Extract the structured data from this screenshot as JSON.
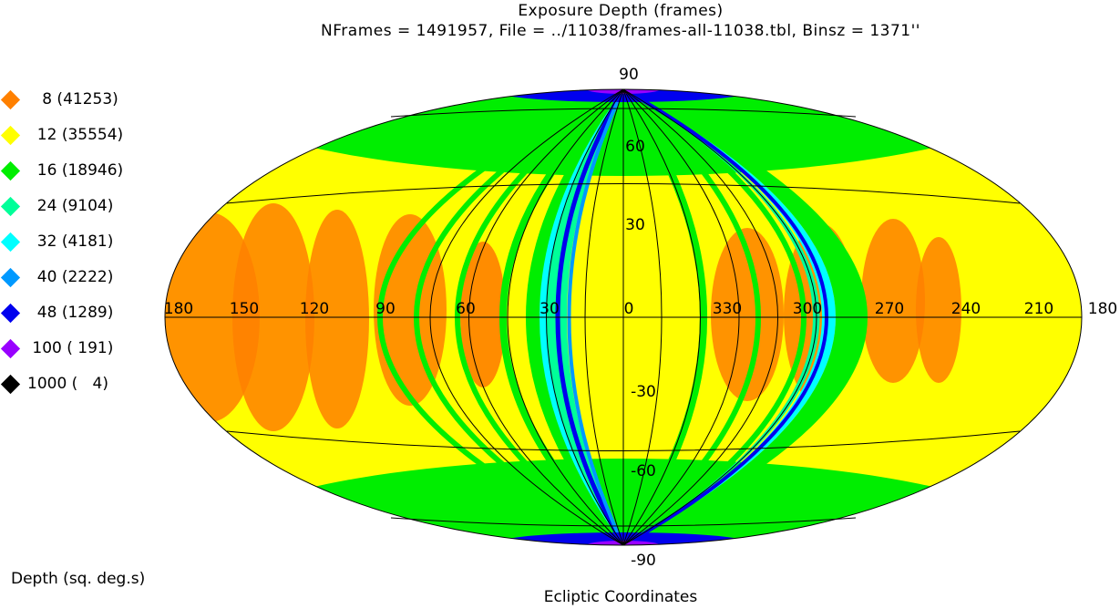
{
  "title": "Exposure Depth (frames)",
  "subtitle": "NFrames = 1491957, File = ../11038/frames-all-11038.tbl, Binsz = 1371''",
  "legend": [
    {
      "label": "   8 (41253)",
      "color": "#ff8000"
    },
    {
      "label": "  12 (35554)",
      "color": "#ffff00"
    },
    {
      "label": "  16 (18946)",
      "color": "#00ee00"
    },
    {
      "label": "  24 (9104)",
      "color": "#00ff99"
    },
    {
      "label": "  32 (4181)",
      "color": "#00ffff"
    },
    {
      "label": "  40 (2222)",
      "color": "#0099ff"
    },
    {
      "label": "  48 (1289)",
      "color": "#0000ee"
    },
    {
      "label": " 100 ( 191)",
      "color": "#9900ff"
    },
    {
      "label": "1000 (   4)",
      "color": "#000000"
    }
  ],
  "depth_label": "Depth (sq. deg.s)",
  "coordinates_label": "Ecliptic Coordinates",
  "map": {
    "projection": "aitoff",
    "latitude_labels": [
      "90",
      "60",
      "30",
      "-30",
      "-60",
      "-90"
    ],
    "longitude_labels": [
      "180",
      "150",
      "120",
      "90",
      "60",
      "30",
      "0",
      "330",
      "300",
      "270",
      "240",
      "210",
      "180"
    ]
  }
}
